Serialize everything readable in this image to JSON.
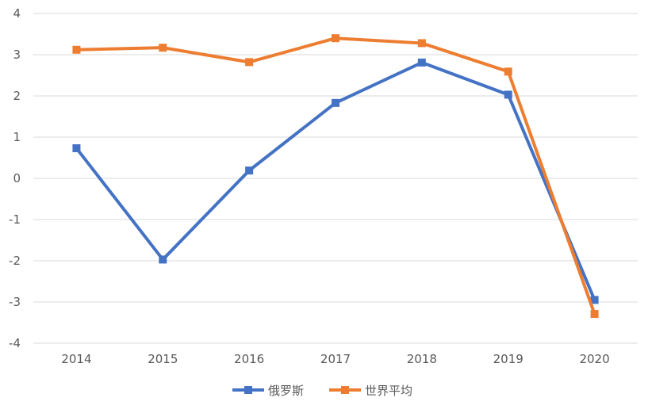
{
  "chart_data": {
    "type": "line",
    "title": "",
    "xlabel": "",
    "ylabel": "",
    "categories": [
      "2014",
      "2015",
      "2016",
      "2017",
      "2018",
      "2019",
      "2020"
    ],
    "ylim": [
      -4,
      4
    ],
    "yticks": [
      4,
      3,
      2,
      1,
      0,
      -1,
      -2,
      -3,
      -4
    ],
    "grid": true,
    "legend_position": "bottom",
    "series": [
      {
        "name": "俄罗斯",
        "color": "#4472C4",
        "values": [
          0.73,
          -1.97,
          0.19,
          1.83,
          2.81,
          2.03,
          -2.95
        ]
      },
      {
        "name": "世界平均",
        "color": "#ED7D31",
        "values": [
          3.12,
          3.17,
          2.82,
          3.4,
          3.28,
          2.59,
          -3.29
        ]
      }
    ]
  }
}
